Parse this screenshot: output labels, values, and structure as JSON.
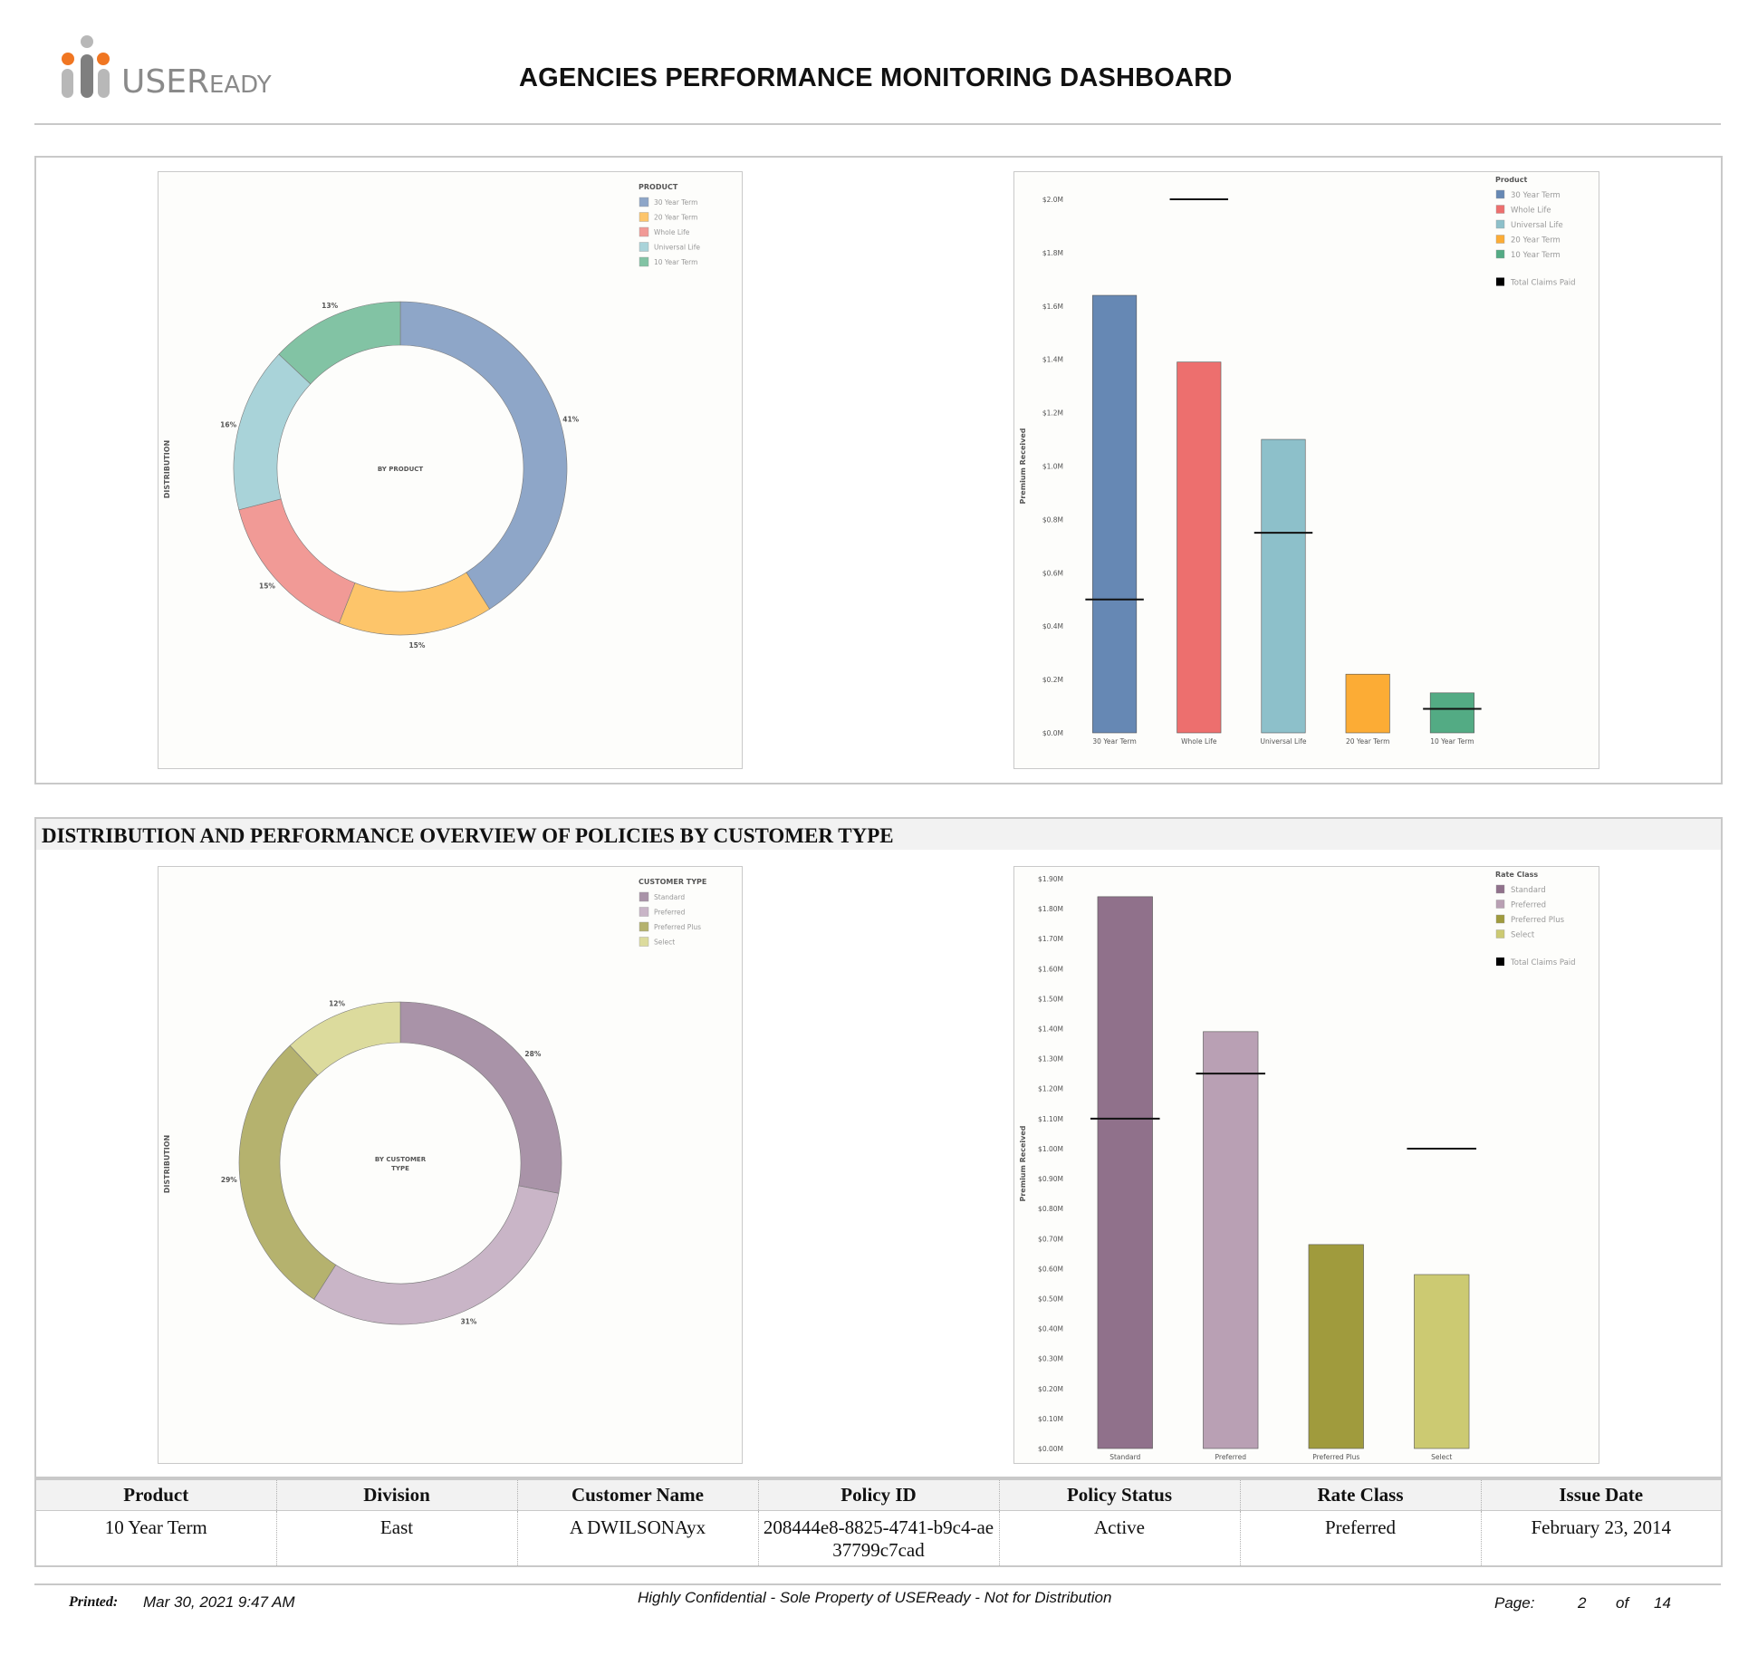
{
  "header": {
    "logo_text": "USEReady",
    "logo_parts": {
      "big": "USER",
      "small": "EADY"
    },
    "title": "AGENCIES PERFORMANCE MONITORING DASHBOARD"
  },
  "section2": {
    "title": "DISTRIBUTION AND PERFORMANCE OVERVIEW OF POLICIES BY CUSTOMER TYPE"
  },
  "table": {
    "columns": [
      "Product",
      "Division",
      "Customer Name",
      "Policy ID",
      "Policy Status",
      "Rate Class",
      "Issue Date"
    ],
    "row": [
      "10 Year Term",
      "East",
      "A DWILSONAyx",
      "208444e8-8825-4741-b9c4-ae37799c7cad",
      "Active",
      "Preferred",
      "February 23, 2014"
    ]
  },
  "footer": {
    "printed_label": "Printed:",
    "printed_value": "Mar 30, 2021 9:47 AM",
    "confidential": "Highly Confidential - Sole Property of USEReady - Not for Distribution",
    "page_label": "Page:",
    "page_current": "2",
    "page_of": "of",
    "page_total": "14"
  },
  "chart_data": [
    {
      "type": "pie",
      "donut": true,
      "center_label": "BY PRODUCT",
      "ylabel": "DISTRIBUTION",
      "legend_title": "PRODUCT",
      "legend": [
        "30 Year Term",
        "20 Year Term",
        "Whole Life",
        "Universal Life",
        "10 Year Term"
      ],
      "slices": [
        {
          "label": "30 Year Term",
          "value": 41,
          "text": "41%",
          "color": "#8ea6c8"
        },
        {
          "label": "20 Year Term",
          "value": 15,
          "text": "15%",
          "color": "#fdc56a"
        },
        {
          "label": "Whole Life",
          "value": 15,
          "text": "15%",
          "color": "#f19a96"
        },
        {
          "label": "Universal Life",
          "value": 16,
          "text": "16%",
          "color": "#a9d3d9"
        },
        {
          "label": "10 Year Term",
          "value": 13,
          "text": "13%",
          "color": "#82c3a4"
        }
      ],
      "legend_colors": [
        "#8ea6c8",
        "#fdc56a",
        "#f19a96",
        "#a9d3d9",
        "#82c3a4"
      ]
    },
    {
      "type": "bar",
      "ylabel": "Premium Received",
      "legend_title": "Product",
      "legend": [
        "30 Year Term",
        "Whole Life",
        "Universal Life",
        "20 Year Term",
        "10 Year Term"
      ],
      "legend_colors": [
        "#6688b4",
        "#ed6f6e",
        "#8dc0ca",
        "#fcac35",
        "#53ab84"
      ],
      "marker_label": "Total Claims Paid",
      "categories": [
        "30 Year Term",
        "Whole Life",
        "Universal Life",
        "20 Year Term",
        "10 Year Term"
      ],
      "colors": [
        "#6688b4",
        "#ed6f6e",
        "#8dc0ca",
        "#fcac35",
        "#53ab84"
      ],
      "values": [
        1.64,
        1.39,
        1.1,
        0.22,
        0.15
      ],
      "claims": [
        0.5,
        2.0,
        0.75,
        null,
        0.09
      ],
      "ylim": [
        0,
        2.0
      ],
      "yticks": [
        "$0.0M",
        "$0.2M",
        "$0.4M",
        "$0.6M",
        "$0.8M",
        "$1.0M",
        "$1.2M",
        "$1.4M",
        "$1.6M",
        "$1.8M",
        "$2.0M"
      ]
    },
    {
      "type": "pie",
      "donut": true,
      "center_label": [
        "BY CUSTOMER",
        "TYPE"
      ],
      "ylabel": "DISTRIBUTION",
      "legend_title": "CUSTOMER TYPE",
      "legend": [
        "Standard",
        "Preferred",
        "Preferred Plus",
        "Select"
      ],
      "legend_colors": [
        "#a993a8",
        "#c9b5c7",
        "#b5b26e",
        "#dcdb9d"
      ],
      "slices": [
        {
          "label": "Standard",
          "value": 28,
          "text": "28%",
          "color": "#a993a8"
        },
        {
          "label": "Preferred",
          "value": 31,
          "text": "31%",
          "color": "#c9b5c7"
        },
        {
          "label": "Preferred Plus",
          "value": 29,
          "text": "29%",
          "color": "#b5b26e"
        },
        {
          "label": "Select",
          "value": 12,
          "text": "12%",
          "color": "#dcdb9d"
        }
      ]
    },
    {
      "type": "bar",
      "ylabel": "Premium Received",
      "legend_title": "Rate Class",
      "legend": [
        "Standard",
        "Preferred",
        "Preferred Plus",
        "Select"
      ],
      "legend_colors": [
        "#90718b",
        "#b9a0b4",
        "#a09b3d",
        "#ccca72"
      ],
      "marker_label": "Total Claims Paid",
      "categories": [
        "Standard",
        "Preferred",
        "Preferred Plus",
        "Select"
      ],
      "colors": [
        "#90718b",
        "#b9a0b4",
        "#a09b3d",
        "#ccca72"
      ],
      "values": [
        1.84,
        1.39,
        0.68,
        0.58
      ],
      "claims": [
        1.1,
        1.25,
        null,
        1.0
      ],
      "ylim": [
        0,
        1.9
      ],
      "yticks": [
        "$0.00M",
        "$0.10M",
        "$0.20M",
        "$0.30M",
        "$0.40M",
        "$0.50M",
        "$0.60M",
        "$0.70M",
        "$0.80M",
        "$0.90M",
        "$1.00M",
        "$1.10M",
        "$1.20M",
        "$1.30M",
        "$1.40M",
        "$1.50M",
        "$1.60M",
        "$1.70M",
        "$1.80M",
        "$1.90M"
      ]
    }
  ]
}
